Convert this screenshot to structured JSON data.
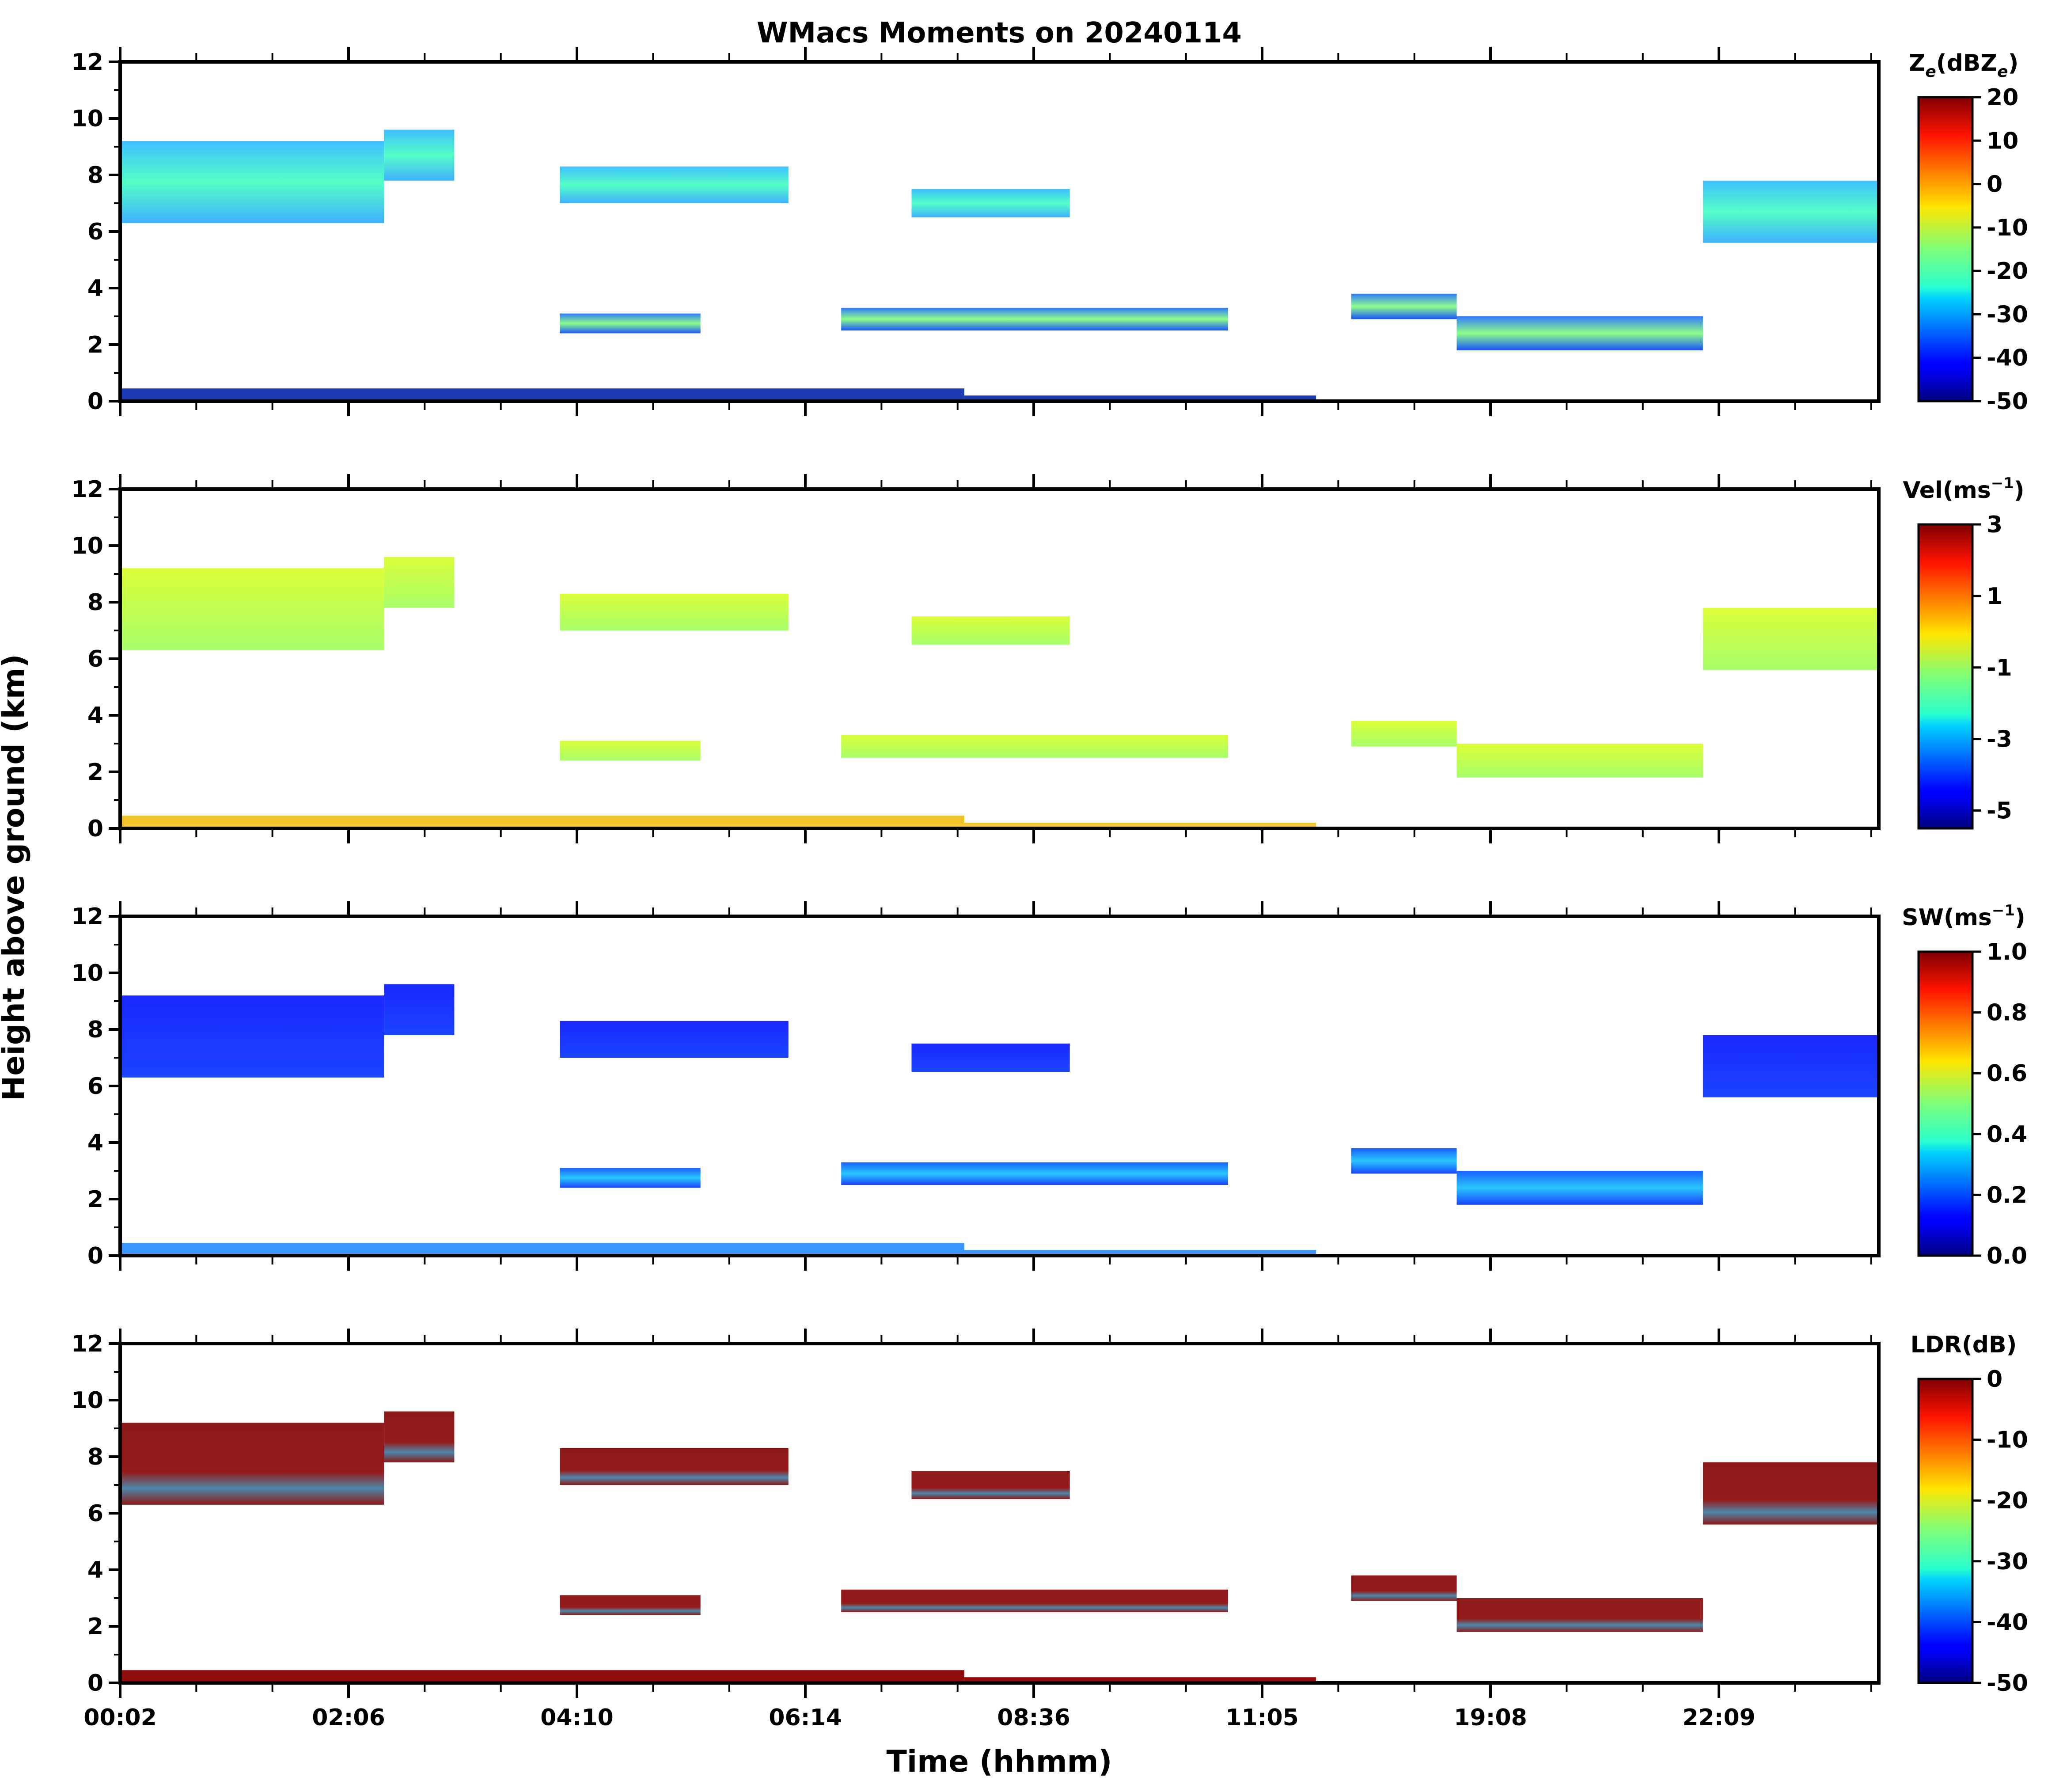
{
  "chart_data": {
    "type": "heatmap",
    "title": "WMacs Moments on 20240114",
    "xlabel": "Time (hhmm)",
    "ylabel": "Height above ground (km)",
    "x_tick_labels": [
      "00:02",
      "02:06",
      "04:10",
      "06:14",
      "08:36",
      "11:05",
      "19:08",
      "22:09"
    ],
    "y_ticks": [
      0,
      2,
      4,
      6,
      8,
      10,
      12
    ],
    "ylim": [
      0,
      12
    ],
    "panels": [
      {
        "name": "reflectivity",
        "colorbar_label_main": "Z",
        "colorbar_label_sub": "e",
        "colorbar_label_unit_main": "(dBZ",
        "colorbar_label_unit_sub": "e",
        "colorbar_label_close": ")",
        "colorbar_range": [
          -50,
          20
        ],
        "colorbar_ticks": [
          "20",
          "10",
          "0",
          "-10",
          "-20",
          "-30",
          "-40",
          "-50"
        ],
        "colormap": "jet"
      },
      {
        "name": "velocity",
        "colorbar_label_main": "Vel(ms",
        "colorbar_label_sup": "−1",
        "colorbar_label_close": ")",
        "colorbar_range": [
          -5.5,
          3
        ],
        "colorbar_ticks": [
          "3",
          "1",
          "-1",
          "-3",
          "-5"
        ],
        "colormap": "jet"
      },
      {
        "name": "spectrum-width",
        "colorbar_label_main": "SW(ms",
        "colorbar_label_sup": "−1",
        "colorbar_label_close": ")",
        "colorbar_range": [
          0,
          1
        ],
        "colorbar_ticks": [
          "1.0",
          "0.8",
          "0.6",
          "0.4",
          "0.2",
          "0.0"
        ],
        "colormap": "jet"
      },
      {
        "name": "ldr",
        "colorbar_label_main": "LDR(dB)",
        "colorbar_range": [
          -50,
          0
        ],
        "colorbar_ticks": [
          "0",
          "-10",
          "-20",
          "-30",
          "-40",
          "-50"
        ],
        "colormap": "jet"
      }
    ],
    "cloud_features_time_fraction_height_km": [
      {
        "feature": "upper cirrus deck",
        "x_start": 0.0,
        "x_end": 0.15,
        "bottom_km": 6.3,
        "top_km": 9.2
      },
      {
        "feature": "upper cirrus",
        "x_start": 0.15,
        "x_end": 0.19,
        "bottom_km": 7.8,
        "top_km": 9.6
      },
      {
        "feature": "cirrus fragments",
        "x_start": 0.25,
        "x_end": 0.38,
        "bottom_km": 7.0,
        "top_km": 8.3
      },
      {
        "feature": "cirrus",
        "x_start": 0.45,
        "x_end": 0.54,
        "bottom_km": 6.5,
        "top_km": 7.5
      },
      {
        "feature": "late cirrus",
        "x_start": 0.9,
        "x_end": 1.0,
        "bottom_km": 5.6,
        "top_km": 7.8
      },
      {
        "feature": "mid-level cloud",
        "x_start": 0.25,
        "x_end": 0.33,
        "bottom_km": 2.4,
        "top_km": 3.1
      },
      {
        "feature": "mid-level cloud",
        "x_start": 0.41,
        "x_end": 0.63,
        "bottom_km": 2.5,
        "top_km": 3.3
      },
      {
        "feature": "mid-level cloud",
        "x_start": 0.7,
        "x_end": 0.76,
        "bottom_km": 2.9,
        "top_km": 3.8
      },
      {
        "feature": "mid-level cloud",
        "x_start": 0.76,
        "x_end": 0.9,
        "bottom_km": 1.8,
        "top_km": 3.0
      },
      {
        "feature": "near-surface echo",
        "x_start": 0.0,
        "x_end": 0.48,
        "bottom_km": 0.0,
        "top_km": 0.45
      },
      {
        "feature": "near-surface echo",
        "x_start": 0.48,
        "x_end": 0.68,
        "bottom_km": 0.0,
        "top_km": 0.2
      }
    ]
  }
}
